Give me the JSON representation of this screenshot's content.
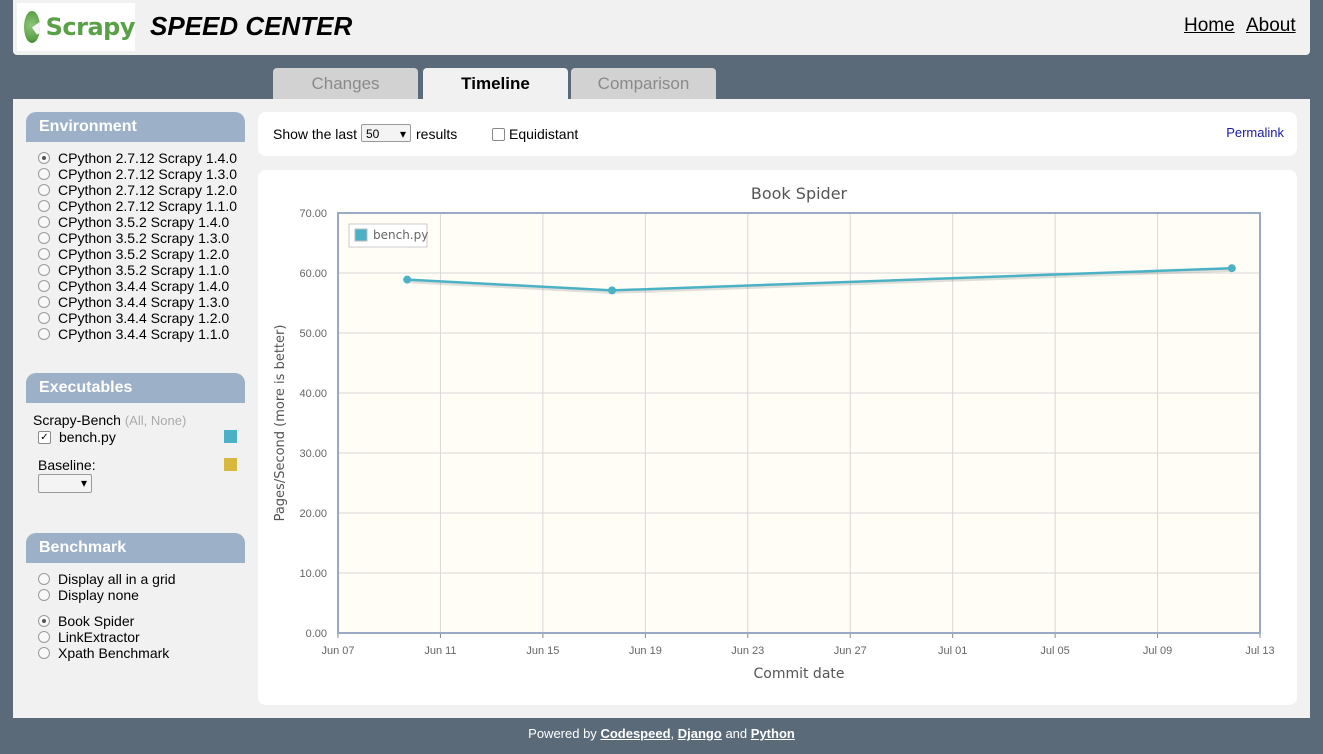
{
  "header": {
    "logo_text": "Scrapy",
    "title": "SPEED CENTER",
    "nav": [
      "Home",
      "About"
    ]
  },
  "tabs": [
    {
      "label": "Changes",
      "active": false
    },
    {
      "label": "Timeline",
      "active": true
    },
    {
      "label": "Comparison",
      "active": false
    }
  ],
  "environment": {
    "title": "Environment",
    "options": [
      {
        "label": "CPython 2.7.12 Scrapy 1.4.0",
        "checked": true
      },
      {
        "label": "CPython 2.7.12 Scrapy 1.3.0",
        "checked": false
      },
      {
        "label": "CPython 2.7.12 Scrapy 1.2.0",
        "checked": false
      },
      {
        "label": "CPython 2.7.12 Scrapy 1.1.0",
        "checked": false
      },
      {
        "label": "CPython 3.5.2 Scrapy 1.4.0",
        "checked": false
      },
      {
        "label": "CPython 3.5.2 Scrapy 1.3.0",
        "checked": false
      },
      {
        "label": "CPython 3.5.2 Scrapy 1.2.0",
        "checked": false
      },
      {
        "label": "CPython 3.5.2 Scrapy 1.1.0",
        "checked": false
      },
      {
        "label": "CPython 3.4.4 Scrapy 1.4.0",
        "checked": false
      },
      {
        "label": "CPython 3.4.4 Scrapy 1.3.0",
        "checked": false
      },
      {
        "label": "CPython 3.4.4 Scrapy 1.2.0",
        "checked": false
      },
      {
        "label": "CPython 3.4.4 Scrapy 1.1.0",
        "checked": false
      }
    ]
  },
  "executables": {
    "title": "Executables",
    "group": "Scrapy-Bench",
    "all": "All",
    "none": "None",
    "item": "bench.py",
    "item_color": "#4bb2c5",
    "baseline_label": "Baseline:",
    "baseline_color": "#d8b83f",
    "baseline_value": ""
  },
  "benchmark": {
    "title": "Benchmark",
    "display_options": [
      {
        "label": "Display all in a grid",
        "checked": false
      },
      {
        "label": "Display none",
        "checked": false
      }
    ],
    "benchmarks": [
      {
        "label": "Book Spider",
        "checked": true
      },
      {
        "label": "LinkExtractor",
        "checked": false
      },
      {
        "label": "Xpath Benchmark",
        "checked": false
      }
    ]
  },
  "controls": {
    "show_last_label": "Show the last",
    "show_last_value": "50",
    "results_label": "results",
    "equidistant_label": "Equidistant",
    "permalink": "Permalink"
  },
  "chart_data": {
    "type": "line",
    "title": "Book Spider",
    "xlabel": "Commit date",
    "ylabel": "Pages/Second (more is better)",
    "x_tick_labels": [
      "Jun 07",
      "Jun 11",
      "Jun 15",
      "Jun 19",
      "Jun 23",
      "Jun 27",
      "Jul 01",
      "Jul 05",
      "Jul 09",
      "Jul 13"
    ],
    "x_range_days": [
      0,
      36
    ],
    "y_tick_labels": [
      "0.00",
      "10.00",
      "20.00",
      "30.00",
      "40.00",
      "50.00",
      "60.00",
      "70.00"
    ],
    "ylim": [
      0,
      70
    ],
    "series": [
      {
        "name": "bench.py",
        "color": "#4bb2c5",
        "points": [
          {
            "day": 2.7,
            "value": 58.9
          },
          {
            "day": 10.7,
            "value": 57.1
          },
          {
            "day": 34.9,
            "value": 60.8
          }
        ]
      }
    ],
    "legend": "top-left",
    "grid": true
  },
  "footer": {
    "prefix": "Powered by",
    "codespeed": "Codespeed",
    "sep": ",",
    "django": "Django",
    "and": "and",
    "python": "Python"
  }
}
